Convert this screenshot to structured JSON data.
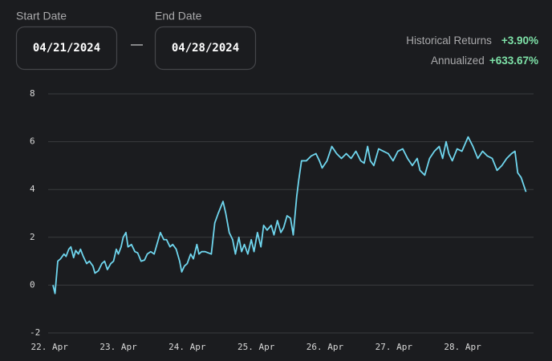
{
  "controls": {
    "start_label": "Start Date",
    "start_value": "04/21/2024",
    "end_label": "End Date",
    "end_value": "04/28/2024"
  },
  "stats": [
    {
      "label": "Historical Returns",
      "value": "+3.90%"
    },
    {
      "label": "Annualized",
      "value": "+633.67%"
    }
  ],
  "chart_data": {
    "type": "line",
    "color": "#6fd6ee",
    "grid": true,
    "xlim": [
      21.98,
      29.03
    ],
    "xticks": [
      {
        "value": 22,
        "label": "22. Apr"
      },
      {
        "value": 23,
        "label": "23. Apr"
      },
      {
        "value": 24,
        "label": "24. Apr"
      },
      {
        "value": 25,
        "label": "25. Apr"
      },
      {
        "value": 26,
        "label": "26. Apr"
      },
      {
        "value": 27,
        "label": "27. Apr"
      },
      {
        "value": 28,
        "label": "28. Apr"
      }
    ],
    "ylim": [
      -2,
      8
    ],
    "yticks": [
      -2,
      0,
      2,
      4,
      6,
      8
    ],
    "x": [
      22.05,
      22.08,
      22.12,
      22.16,
      22.21,
      22.24,
      22.28,
      22.31,
      22.35,
      22.38,
      22.42,
      22.45,
      22.49,
      22.54,
      22.58,
      22.63,
      22.66,
      22.71,
      22.76,
      22.8,
      22.84,
      22.89,
      22.93,
      22.97,
      23.0,
      23.04,
      23.07,
      23.11,
      23.14,
      23.19,
      23.24,
      23.28,
      23.33,
      23.38,
      23.42,
      23.47,
      23.52,
      23.56,
      23.61,
      23.66,
      23.7,
      23.75,
      23.79,
      23.84,
      23.89,
      23.92,
      23.96,
      24.0,
      24.05,
      24.09,
      24.14,
      24.17,
      24.21,
      24.26,
      24.35,
      24.4,
      24.45,
      24.52,
      24.56,
      24.61,
      24.66,
      24.7,
      24.75,
      24.79,
      24.83,
      24.88,
      24.93,
      24.97,
      25.02,
      25.07,
      25.11,
      25.16,
      25.22,
      25.26,
      25.31,
      25.36,
      25.4,
      25.45,
      25.5,
      25.54,
      25.59,
      25.62,
      25.66,
      25.73,
      25.8,
      25.87,
      25.92,
      25.96,
      26.03,
      26.1,
      26.17,
      26.24,
      26.31,
      26.38,
      26.45,
      26.52,
      26.57,
      26.62,
      26.66,
      26.71,
      26.78,
      26.85,
      26.92,
      26.99,
      27.06,
      27.13,
      27.2,
      27.27,
      27.34,
      27.38,
      27.45,
      27.52,
      27.59,
      27.66,
      27.71,
      27.76,
      27.8,
      27.85,
      27.92,
      27.99,
      28.08,
      28.15,
      28.22,
      28.29,
      28.36,
      28.43,
      28.5,
      28.57,
      28.64,
      28.71,
      28.76,
      28.8,
      28.85,
      28.92
    ],
    "values": [
      0.0,
      -0.35,
      1.0,
      1.1,
      1.3,
      1.2,
      1.5,
      1.6,
      1.15,
      1.45,
      1.3,
      1.5,
      1.2,
      0.9,
      1.0,
      0.8,
      0.5,
      0.6,
      0.9,
      1.0,
      0.65,
      0.9,
      1.0,
      1.5,
      1.3,
      1.6,
      2.0,
      2.2,
      1.6,
      1.7,
      1.4,
      1.35,
      1.0,
      1.05,
      1.3,
      1.4,
      1.3,
      1.7,
      2.2,
      1.9,
      1.9,
      1.6,
      1.7,
      1.5,
      1.0,
      0.55,
      0.8,
      0.9,
      1.3,
      1.1,
      1.7,
      1.3,
      1.4,
      1.4,
      1.3,
      2.6,
      3.0,
      3.5,
      3.0,
      2.2,
      1.9,
      1.3,
      2.0,
      1.4,
      1.7,
      1.3,
      1.9,
      1.4,
      2.2,
      1.6,
      2.5,
      2.3,
      2.5,
      2.1,
      2.7,
      2.2,
      2.4,
      2.9,
      2.8,
      2.1,
      3.7,
      4.4,
      5.2,
      5.2,
      5.4,
      5.5,
      5.2,
      4.9,
      5.2,
      5.8,
      5.5,
      5.3,
      5.5,
      5.3,
      5.6,
      5.2,
      5.1,
      5.8,
      5.2,
      5.0,
      5.7,
      5.6,
      5.5,
      5.2,
      5.6,
      5.7,
      5.3,
      5.0,
      5.3,
      4.8,
      4.6,
      5.3,
      5.6,
      5.8,
      5.3,
      6.0,
      5.5,
      5.2,
      5.7,
      5.6,
      6.2,
      5.8,
      5.3,
      5.6,
      5.4,
      5.3,
      4.8,
      5.0,
      5.3,
      5.5,
      5.6,
      4.7,
      4.5,
      3.9
    ]
  }
}
